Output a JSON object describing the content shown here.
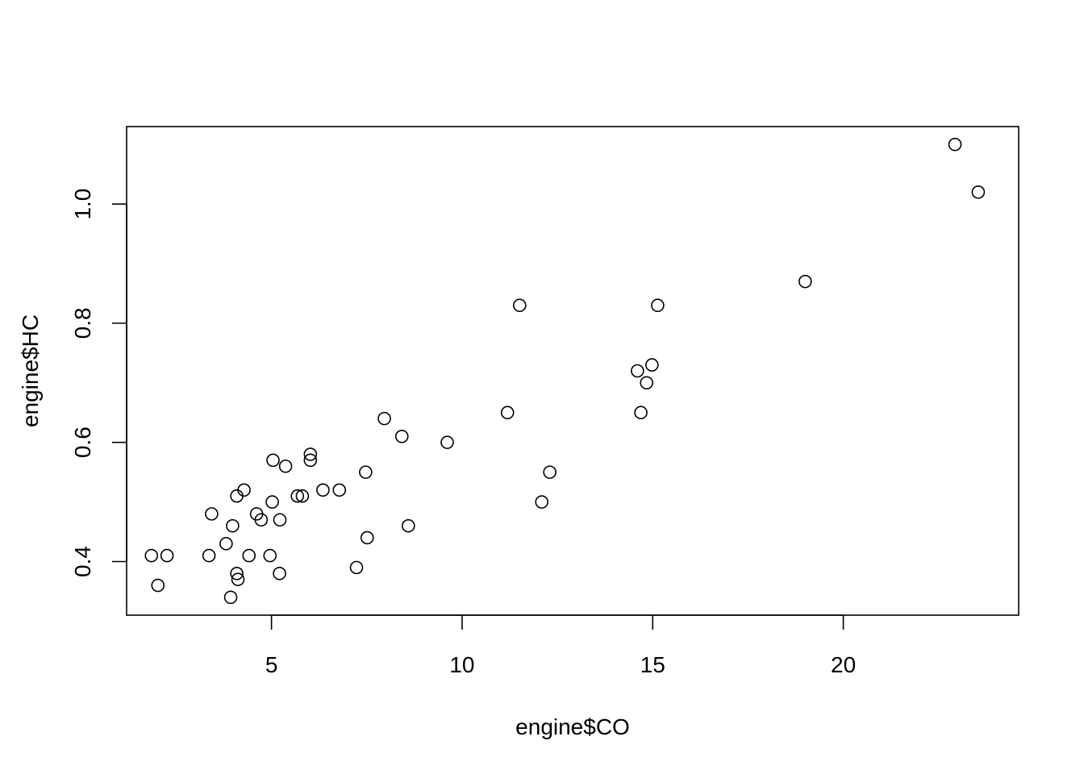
{
  "chart_data": {
    "type": "scatter",
    "title": "",
    "xlabel": "engine$CO",
    "ylabel": "engine$HC",
    "xlim": [
      1.2,
      24.6
    ],
    "ylim": [
      0.31,
      1.13
    ],
    "xticks": [
      5,
      10,
      15,
      20
    ],
    "xtick_labels": [
      "5",
      "10",
      "15",
      "20"
    ],
    "yticks": [
      0.4,
      0.6,
      0.8,
      1.0
    ],
    "ytick_labels": [
      "0.4",
      "0.6",
      "0.8",
      "1.0"
    ],
    "grid": false,
    "legend": "none",
    "points": [
      {
        "x": 1.85,
        "y": 0.41
      },
      {
        "x": 2.02,
        "y": 0.36
      },
      {
        "x": 2.26,
        "y": 0.41
      },
      {
        "x": 3.36,
        "y": 0.41
      },
      {
        "x": 3.43,
        "y": 0.48
      },
      {
        "x": 3.81,
        "y": 0.43
      },
      {
        "x": 3.93,
        "y": 0.34
      },
      {
        "x": 3.98,
        "y": 0.46
      },
      {
        "x": 4.09,
        "y": 0.51
      },
      {
        "x": 4.09,
        "y": 0.38
      },
      {
        "x": 4.12,
        "y": 0.37
      },
      {
        "x": 4.28,
        "y": 0.52
      },
      {
        "x": 4.41,
        "y": 0.41
      },
      {
        "x": 4.61,
        "y": 0.48
      },
      {
        "x": 4.73,
        "y": 0.47
      },
      {
        "x": 4.96,
        "y": 0.41
      },
      {
        "x": 5.02,
        "y": 0.5
      },
      {
        "x": 5.04,
        "y": 0.57
      },
      {
        "x": 5.21,
        "y": 0.38
      },
      {
        "x": 5.22,
        "y": 0.47
      },
      {
        "x": 5.37,
        "y": 0.56
      },
      {
        "x": 5.68,
        "y": 0.51
      },
      {
        "x": 5.81,
        "y": 0.51
      },
      {
        "x": 6.02,
        "y": 0.58
      },
      {
        "x": 6.02,
        "y": 0.57
      },
      {
        "x": 6.35,
        "y": 0.52
      },
      {
        "x": 6.78,
        "y": 0.52
      },
      {
        "x": 7.23,
        "y": 0.39
      },
      {
        "x": 7.47,
        "y": 0.55
      },
      {
        "x": 7.51,
        "y": 0.44
      },
      {
        "x": 7.96,
        "y": 0.64
      },
      {
        "x": 8.42,
        "y": 0.61
      },
      {
        "x": 8.59,
        "y": 0.46
      },
      {
        "x": 9.61,
        "y": 0.6
      },
      {
        "x": 11.19,
        "y": 0.65
      },
      {
        "x": 11.51,
        "y": 0.83
      },
      {
        "x": 12.09,
        "y": 0.5
      },
      {
        "x": 12.3,
        "y": 0.55
      },
      {
        "x": 14.6,
        "y": 0.72
      },
      {
        "x": 14.69,
        "y": 0.65
      },
      {
        "x": 14.84,
        "y": 0.7
      },
      {
        "x": 14.98,
        "y": 0.73
      },
      {
        "x": 15.13,
        "y": 0.83
      },
      {
        "x": 19.0,
        "y": 0.87
      },
      {
        "x": 22.93,
        "y": 1.1
      },
      {
        "x": 23.54,
        "y": 1.02
      }
    ]
  }
}
